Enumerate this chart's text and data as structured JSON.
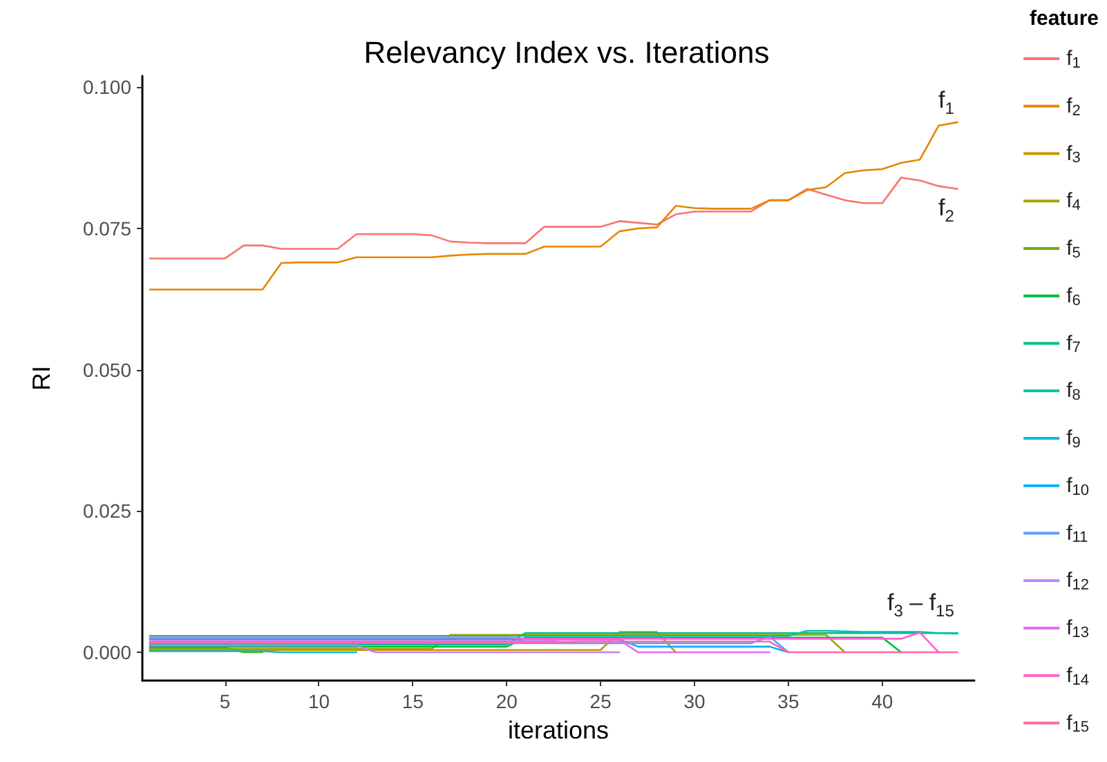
{
  "chart_data": {
    "type": "line",
    "title": "Relevancy Index vs. Iterations",
    "xlabel": "iterations",
    "ylabel": "RI",
    "legend_title": "feature",
    "legend": "right",
    "grid": false,
    "marker": "none",
    "line_style": "solid",
    "x": [
      1,
      2,
      3,
      4,
      5,
      6,
      7,
      8,
      9,
      10,
      11,
      12,
      13,
      14,
      15,
      16,
      17,
      18,
      19,
      20,
      21,
      22,
      23,
      24,
      25,
      26,
      27,
      28,
      29,
      30,
      31,
      32,
      33,
      34,
      35,
      36,
      37,
      38,
      39,
      40,
      41,
      42,
      43,
      44
    ],
    "xlim": [
      0.6,
      44.9
    ],
    "xticks": [
      5,
      10,
      15,
      20,
      25,
      30,
      35,
      40
    ],
    "ylim": [
      -0.005,
      0.102
    ],
    "yticks": [
      {
        "value": 0,
        "label": "0.000"
      },
      {
        "value": 0.025,
        "label": "0.025"
      },
      {
        "value": 0.05,
        "label": "0.050"
      },
      {
        "value": 0.075,
        "label": "0.075"
      },
      {
        "value": 0.1,
        "label": "0.100"
      }
    ],
    "annotations": [
      "f$_{1}$",
      "f$_{2}$",
      "f$_{3}$ – f$_{15}$"
    ],
    "series": [
      {
        "name": "f$_{1}$",
        "color": "#f8766d",
        "values": [
          0.0697,
          0.0697,
          0.0697,
          0.0697,
          0.0697,
          0.072,
          0.072,
          0.0714,
          0.0714,
          0.0714,
          0.0714,
          0.074,
          0.074,
          0.074,
          0.074,
          0.0738,
          0.0727,
          0.0725,
          0.0724,
          0.0724,
          0.0724,
          0.0753,
          0.0753,
          0.0753,
          0.0753,
          0.0763,
          0.076,
          0.0757,
          0.0775,
          0.078,
          0.078,
          0.078,
          0.078,
          0.08,
          0.08,
          0.082,
          0.081,
          0.08,
          0.0795,
          0.0795,
          0.084,
          0.0835,
          0.0825,
          0.082
        ]
      },
      {
        "name": "f$_{2}$",
        "color": "#e58700",
        "values": [
          0.0642,
          0.0642,
          0.0642,
          0.0642,
          0.0642,
          0.0642,
          0.0642,
          0.0689,
          0.069,
          0.069,
          0.069,
          0.0699,
          0.0699,
          0.0699,
          0.0699,
          0.0699,
          0.0702,
          0.0704,
          0.0705,
          0.0705,
          0.0705,
          0.0718,
          0.0718,
          0.0718,
          0.0718,
          0.0745,
          0.075,
          0.0752,
          0.079,
          0.0786,
          0.0785,
          0.0785,
          0.0785,
          0.08,
          0.08,
          0.0818,
          0.0823,
          0.0848,
          0.0853,
          0.0855,
          0.0866,
          0.0872,
          0.0932,
          0.0938
        ]
      },
      {
        "name": "f$_{3}$",
        "color": "#c99800",
        "values": [
          0.0004,
          0.0004,
          0.0004,
          0.0004,
          0.0004,
          0.0004,
          0.0004,
          0.0004,
          0.0004,
          0.0004,
          0.0004,
          0.0004,
          0.0004,
          0.0004,
          0.0004,
          0.0004,
          0.0004,
          0.0004,
          0.0004,
          0.0004,
          0.0004,
          0.0004,
          0.0004,
          0.0004,
          0.0004,
          0.0036,
          0.0036,
          0.0036,
          0,
          null,
          null,
          null,
          null,
          null,
          null,
          null,
          null,
          null,
          null,
          null,
          null,
          null,
          null,
          null
        ]
      },
      {
        "name": "f$_{4}$",
        "color": "#a3a500",
        "values": [
          0.0006,
          0.0006,
          0.0006,
          0.0006,
          0.0006,
          0.0006,
          0.0006,
          0.0006,
          0.0006,
          0.0006,
          0.0006,
          0.0006,
          0.0006,
          0.0006,
          0.0006,
          0.0006,
          0.0031,
          0.0031,
          0.0031,
          0.0031,
          0.0031,
          0.0031,
          0.0031,
          0.0031,
          0.0031,
          0.0031,
          0.0031,
          0.0031,
          0.0031,
          0.0031,
          0.0031,
          0.0031,
          0.0031,
          0.0031,
          0.0031,
          0.0031,
          0.0031,
          0,
          null,
          null,
          null,
          null,
          null,
          null
        ]
      },
      {
        "name": "f$_{5}$",
        "color": "#6bb100",
        "values": [
          0.0008,
          0.0008,
          0.0008,
          0.0008,
          0.0008,
          0,
          0,
          null,
          null,
          null,
          null,
          null,
          null,
          null,
          null,
          null,
          null,
          null,
          null,
          null,
          null,
          null,
          null,
          null,
          null,
          null,
          null,
          null,
          null,
          null,
          null,
          null,
          null,
          null,
          null,
          null,
          null,
          null,
          null,
          null,
          null,
          null,
          null,
          null
        ]
      },
      {
        "name": "f$_{6}$",
        "color": "#00ba38",
        "values": [
          0.001,
          0.001,
          0.001,
          0.001,
          0.001,
          0.001,
          0.001,
          0.001,
          0.001,
          0.001,
          0.001,
          0.001,
          0.001,
          0.001,
          0.001,
          0.001,
          0.001,
          0.001,
          0.001,
          0.001,
          0.0026,
          0.0026,
          0.0026,
          0.0026,
          0.0026,
          0.0026,
          0.0026,
          0.0026,
          0.0026,
          0.0026,
          0.0026,
          0.0026,
          0.0026,
          0.0026,
          0.0026,
          0.0026,
          0.0026,
          0.0026,
          0.0026,
          0.0026,
          0,
          null,
          null,
          null
        ]
      },
      {
        "name": "f$_{7}$",
        "color": "#00bf7d",
        "values": [
          0.0014,
          0.0014,
          0.0014,
          0.0014,
          0.0014,
          0.0014,
          0.0014,
          0.0014,
          0.0014,
          0.0014,
          0.0014,
          0.0014,
          0.0014,
          0.0014,
          0.0014,
          0.0014,
          0.0014,
          0.0014,
          0.0014,
          0.0014,
          0.0034,
          0.0034,
          0.0034,
          0.0034,
          0.0034,
          0.0034,
          0.0034,
          0.0034,
          0.0034,
          0.0034,
          0.0034,
          0.0034,
          0.0034,
          0.0034,
          0.0034,
          0.0034,
          0.0034,
          0.0034,
          0.0034,
          0.0034,
          0.0034,
          0.0034,
          0.0034,
          0.0034
        ]
      },
      {
        "name": "f$_{8}$",
        "color": "#00c0af",
        "values": [
          0.0029,
          0.0029,
          0.0029,
          0.0029,
          0.0029,
          0.0029,
          0.0029,
          0.0029,
          0.0029,
          0.0029,
          0.0029,
          0.0029,
          0.0029,
          0.0029,
          0.0029,
          0.0029,
          0.0029,
          0.0029,
          0.0029,
          0.0029,
          0.0029,
          0.0029,
          0.0029,
          0.0029,
          0.0029,
          0.0029,
          0.0029,
          0.0029,
          0.0029,
          0.0029,
          0.0029,
          0.0029,
          0.0029,
          0.0029,
          0.0029,
          0.0038,
          0.0038,
          0.0037,
          0.0036,
          0.0036,
          0.0036,
          0.0036,
          0.0034,
          0.0033
        ]
      },
      {
        "name": "f$_{9}$",
        "color": "#00bcd8",
        "values": [
          0.0002,
          0.0002,
          0.0002,
          0.0002,
          0.0002,
          0.0002,
          0.0002,
          0,
          0,
          0,
          0,
          0,
          null,
          null,
          null,
          null,
          null,
          null,
          null,
          null,
          null,
          null,
          null,
          null,
          null,
          null,
          null,
          null,
          null,
          null,
          null,
          null,
          null,
          null,
          null,
          null,
          null,
          null,
          null,
          null,
          null,
          null,
          null,
          null
        ]
      },
      {
        "name": "f$_{10}$",
        "color": "#00b0f6",
        "values": [
          0.0023,
          0.0023,
          0.0023,
          0.0023,
          0.0023,
          0.0023,
          0.0023,
          0.0023,
          0.0023,
          0.0023,
          0.0023,
          0.0023,
          0.0023,
          0.0023,
          0.0023,
          0.0023,
          0.0023,
          0.0023,
          0.0023,
          0.0023,
          0.0023,
          0.0023,
          0.0023,
          0.0023,
          0.0023,
          0.0023,
          0.001,
          0.001,
          0.001,
          0.001,
          0.001,
          0.001,
          0.001,
          0.001,
          0,
          null,
          null,
          null,
          null,
          null,
          null,
          null,
          null,
          null
        ]
      },
      {
        "name": "f$_{11}$",
        "color": "#619cff",
        "values": [
          0.0016,
          0.0016,
          0.0016,
          0.0016,
          0.0016,
          0.0016,
          0.0016,
          0.0016,
          0.0016,
          0.0016,
          0.0016,
          0.0016,
          0.0016,
          0.0016,
          0.0016,
          0.0016,
          0.0016,
          0.0016,
          0.0016,
          0.0016,
          0.0016,
          0.0016,
          0.0016,
          0.0016,
          0.0016,
          0.0016,
          0.0016,
          0.0016,
          0.0016,
          0.0016,
          0.0016,
          0.0016,
          0.0016,
          0.0028,
          0,
          null,
          null,
          null,
          null,
          null,
          null,
          null,
          null,
          null
        ]
      },
      {
        "name": "f$_{12}$",
        "color": "#b983ff",
        "values": [
          0.0012,
          0.0012,
          0.0012,
          0.0012,
          0.0012,
          0.0012,
          0.0012,
          0.0012,
          0.0012,
          0.0012,
          0.0012,
          0.0012,
          0,
          0,
          0,
          0,
          0,
          0,
          0,
          0,
          0,
          0,
          0,
          0,
          0,
          0,
          null,
          null,
          null,
          null,
          null,
          null,
          null,
          null,
          null,
          null,
          null,
          null,
          null,
          null,
          null,
          null,
          null,
          null
        ]
      },
      {
        "name": "f$_{13}$",
        "color": "#e76bf3",
        "values": [
          0.002,
          0.002,
          0.002,
          0.002,
          0.002,
          0.002,
          0.002,
          0.002,
          0.002,
          0.002,
          0.002,
          0.002,
          0.002,
          0.002,
          0.002,
          0.002,
          0.002,
          0.002,
          0.002,
          0.002,
          0.002,
          0.002,
          0.0022,
          0.0022,
          0.0022,
          0.0022,
          0,
          0,
          0,
          0,
          0,
          0,
          0,
          0,
          null,
          null,
          null,
          null,
          null,
          null,
          null,
          null,
          null,
          null
        ]
      },
      {
        "name": "f$_{14}$",
        "color": "#fd61d1",
        "values": [
          0.0026,
          0.0026,
          0.0026,
          0.0026,
          0.0026,
          0.0026,
          0.0026,
          0.0026,
          0.0026,
          0.0026,
          0.0026,
          0.0026,
          0.0026,
          0.0026,
          0.0026,
          0.0026,
          0.0026,
          0.0026,
          0.0026,
          0.0026,
          0.0024,
          0.0024,
          0.0024,
          0.0024,
          0.0024,
          0.0024,
          0.0024,
          0.0024,
          0.0024,
          0.0024,
          0.0024,
          0.0024,
          0.0024,
          0.0024,
          0.0024,
          0.0024,
          0.0024,
          0.0024,
          0.0024,
          0.0024,
          0.0024,
          0.0035,
          0,
          null
        ]
      },
      {
        "name": "f$_{15}$",
        "color": "#ff67a4",
        "values": [
          0.0018,
          0.0018,
          0.0018,
          0.0018,
          0.0018,
          0.0018,
          0.0018,
          0.0018,
          0.0018,
          0.0018,
          0.0018,
          0.0018,
          0.0018,
          0.0018,
          0.0018,
          0.0018,
          0.0018,
          0.0018,
          0.0018,
          0.0018,
          0.0018,
          0.0018,
          0.0018,
          0.0019,
          0.0019,
          0.0019,
          0.0019,
          0.0019,
          0.0019,
          0.0019,
          0.0019,
          0.0019,
          0.0019,
          0.0019,
          0,
          0,
          0,
          0,
          0,
          0,
          0,
          0,
          0,
          0
        ]
      }
    ]
  }
}
